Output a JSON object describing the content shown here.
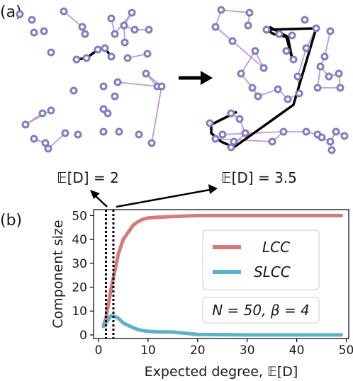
{
  "panels": {
    "a": "(a)",
    "b": "(b)"
  },
  "network_labels": {
    "left": "𝔼[D] = 2",
    "right": "𝔼[D] = 3.5"
  },
  "colors": {
    "node": "#7b7fbf",
    "edge": "#c597c8",
    "path": "#000000",
    "lcc": "#d47b7c",
    "slcc": "#5fb1c9"
  },
  "chart_data": {
    "type": "line",
    "xlabel": "Expected degree, 𝔼[D]",
    "ylabel": "Component size",
    "xlim": [
      -1,
      50.5
    ],
    "ylim": [
      -1.5,
      52.5
    ],
    "xticks": [
      0,
      10,
      20,
      30,
      40,
      50
    ],
    "yticks": [
      0,
      10,
      20,
      30,
      40,
      50
    ],
    "grid": false,
    "legend_position": "center-right",
    "annotation": "N = 50, β = 4",
    "vlines": [
      1.5,
      3
    ],
    "series": [
      {
        "name": "LCC",
        "color": "#d47b7c",
        "x": [
          1,
          1.5,
          2,
          2.5,
          3,
          3.5,
          4,
          4.5,
          5,
          6,
          7,
          8,
          9,
          10,
          12,
          15,
          20,
          25,
          30,
          35,
          40,
          45,
          49
        ],
        "y": [
          4,
          7,
          13,
          19,
          24,
          29,
          34,
          37,
          40,
          43,
          46,
          47.5,
          48.5,
          49,
          49.3,
          49.6,
          50,
          50,
          50,
          50,
          50,
          50,
          50
        ]
      },
      {
        "name": "SLCC",
        "color": "#5fb1c9",
        "x": [
          1,
          1.5,
          2,
          2.5,
          3,
          3.5,
          4,
          4.5,
          5,
          6,
          7,
          8,
          9,
          10,
          12,
          15,
          20,
          25,
          30,
          35,
          40,
          45,
          49
        ],
        "y": [
          3.5,
          5,
          6.5,
          8,
          8,
          7.5,
          7,
          6,
          5,
          4,
          3,
          2.2,
          1.8,
          1.5,
          1.3,
          1.2,
          0.2,
          0.1,
          0,
          0,
          0,
          0,
          0
        ]
      }
    ]
  }
}
